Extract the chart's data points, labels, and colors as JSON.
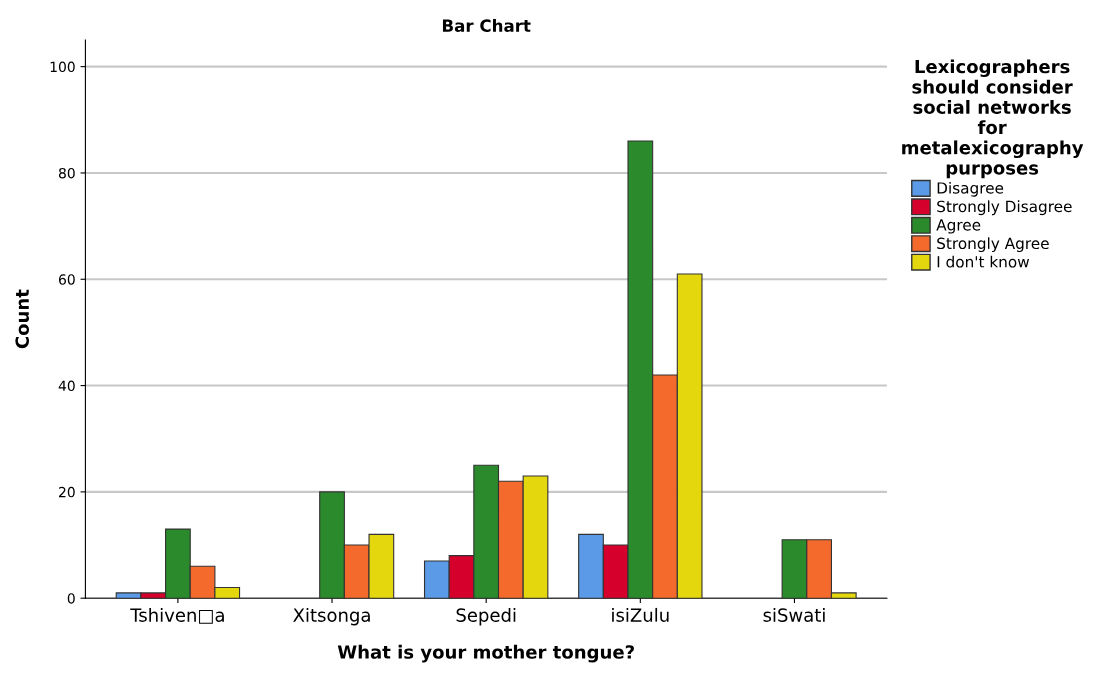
{
  "chart_data": {
    "type": "bar",
    "title": "Bar Chart",
    "xlabel": "What is your mother tongue?",
    "ylabel": "Count",
    "legend_title": "Lexicographers\nshould consider\nsocial networks\nfor\nmetalexicography\npurposes",
    "categories": [
      "Tshiven□a",
      "Xitsonga",
      "Sepedi",
      "isiZulu",
      "siSwati"
    ],
    "series": [
      {
        "name": "Disagree",
        "color": "#5a9ae6",
        "values": [
          1,
          null,
          7,
          12,
          null
        ]
      },
      {
        "name": "Strongly Disagree",
        "color": "#d6002c",
        "values": [
          1,
          null,
          8,
          10,
          null
        ]
      },
      {
        "name": "Agree",
        "color": "#2b8a2b",
        "values": [
          13,
          20,
          25,
          86,
          11
        ]
      },
      {
        "name": "Strongly Agree",
        "color": "#f36a2c",
        "values": [
          6,
          10,
          22,
          42,
          11
        ]
      },
      {
        "name": "I don't know",
        "color": "#e5d70e",
        "values": [
          2,
          12,
          23,
          61,
          1
        ]
      }
    ],
    "ylim": [
      0,
      105
    ],
    "yticks": [
      0,
      20,
      40,
      60,
      80,
      100
    ],
    "grid": "y",
    "legend": "right"
  }
}
